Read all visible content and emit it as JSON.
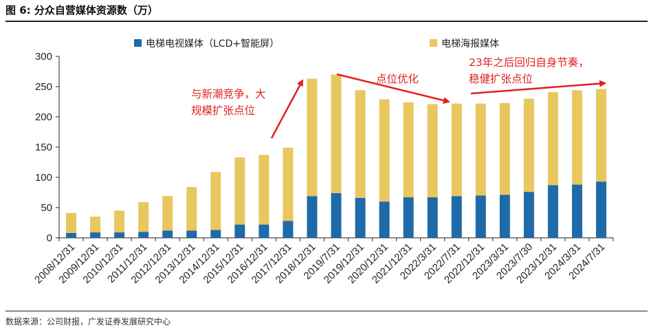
{
  "header": {
    "title": "图 6: 分众自营媒体资源数（万）"
  },
  "footer": {
    "source": "数据来源：公司财报，广发证券发展研究中心"
  },
  "colors": {
    "tv": "#1f6aa8",
    "poster": "#e9c75f",
    "annotation": "#e02020",
    "axis": "#222222"
  },
  "chart_data": {
    "type": "bar",
    "stacked": true,
    "categories": [
      "2008/12/31",
      "2009/12/31",
      "2010/12/31",
      "2011/12/31",
      "2012/12/31",
      "2013/12/31",
      "2014/12/31",
      "2015/12/31",
      "2016/12/31",
      "2017/12/31",
      "2018/12/31",
      "2019/7/31",
      "2019/12/31",
      "2020/12/31",
      "2021/12/31",
      "2022/3/31",
      "2022/7/31",
      "2022/12/31",
      "2023/3/31",
      "2023/7/30",
      "2023/12/31",
      "2024/3/31",
      "2024/7/31"
    ],
    "series": [
      {
        "name": "电梯电视媒体（LCD+智能屏）",
        "color": "#1f6aa8",
        "values": [
          8,
          9,
          9,
          10,
          12,
          12,
          13,
          22,
          22,
          28,
          69,
          74,
          66,
          60,
          67,
          67,
          69,
          70,
          71,
          76,
          87,
          88,
          93
        ]
      },
      {
        "name": "电梯海报媒体",
        "color": "#e9c75f",
        "values": [
          33,
          26,
          36,
          49,
          57,
          72,
          96,
          111,
          115,
          121,
          194,
          196,
          178,
          169,
          157,
          154,
          153,
          152,
          152,
          154,
          154,
          156,
          153
        ]
      }
    ],
    "ylim": [
      0,
      300
    ],
    "yticks": [
      0,
      50,
      100,
      150,
      200,
      250,
      300
    ],
    "legend_position": "top",
    "grid": false,
    "annotations": [
      {
        "text_lines": [
          "与新潮竞争，大",
          "规模扩张点位"
        ]
      },
      {
        "text_lines": [
          "点位优化"
        ]
      },
      {
        "text_lines": [
          "23年之后回归自身节奏，",
          "稳健扩张点位"
        ]
      }
    ]
  }
}
